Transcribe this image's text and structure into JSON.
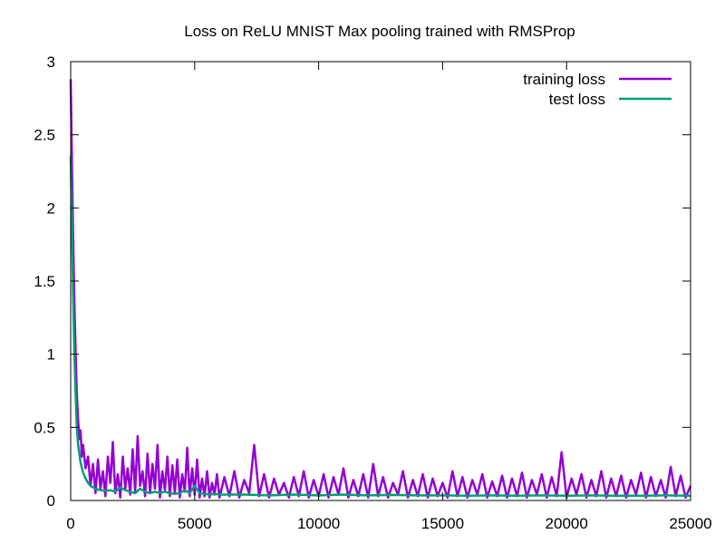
{
  "chart_data": {
    "type": "line",
    "title": "Loss on ReLU MNIST Max pooling trained with RMSProp",
    "xlabel": "",
    "ylabel": "",
    "xlim": [
      0,
      25000
    ],
    "ylim": [
      0,
      3
    ],
    "x_ticks": [
      "0",
      "5000",
      "10000",
      "15000",
      "20000",
      "25000"
    ],
    "y_ticks": [
      "0",
      "0.5",
      "1",
      "1.5",
      "2",
      "2.5",
      "3"
    ],
    "grid": false,
    "legend_position": "top-right",
    "series": [
      {
        "name": "training loss",
        "color": "#9400d3",
        "x": [
          0,
          50,
          100,
          150,
          200,
          250,
          300,
          350,
          400,
          450,
          500,
          600,
          700,
          800,
          900,
          1000,
          1100,
          1200,
          1300,
          1400,
          1500,
          1600,
          1700,
          1800,
          1900,
          2000,
          2100,
          2200,
          2300,
          2400,
          2500,
          2600,
          2700,
          2800,
          2900,
          3000,
          3100,
          3200,
          3300,
          3400,
          3500,
          3600,
          3700,
          3800,
          3900,
          4000,
          4100,
          4200,
          4300,
          4400,
          4500,
          4600,
          4700,
          4800,
          4900,
          5000,
          5100,
          5200,
          5300,
          5400,
          5500,
          5600,
          5700,
          5800,
          5900,
          6000,
          6200,
          6400,
          6600,
          6800,
          7000,
          7200,
          7400,
          7600,
          7800,
          8000,
          8200,
          8400,
          8600,
          8800,
          9000,
          9200,
          9400,
          9600,
          9800,
          10000,
          10200,
          10400,
          10600,
          10800,
          11000,
          11200,
          11400,
          11600,
          11800,
          12000,
          12200,
          12400,
          12600,
          12800,
          13000,
          13200,
          13400,
          13600,
          13800,
          14000,
          14200,
          14400,
          14600,
          14800,
          15000,
          15200,
          15400,
          15600,
          15800,
          16000,
          16200,
          16400,
          16600,
          16800,
          17000,
          17200,
          17400,
          17600,
          17800,
          18000,
          18200,
          18400,
          18600,
          18800,
          19000,
          19200,
          19400,
          19600,
          19800,
          20000,
          20200,
          20400,
          20600,
          20800,
          21000,
          21200,
          21400,
          21600,
          21800,
          22000,
          22200,
          22400,
          22600,
          22800,
          23000,
          23200,
          23400,
          23600,
          23800,
          24000,
          24200,
          24400,
          24600,
          24800,
          25000
        ],
        "values": [
          2.88,
          2.3,
          1.8,
          1.35,
          1.0,
          0.72,
          0.55,
          0.42,
          0.48,
          0.3,
          0.38,
          0.22,
          0.3,
          0.1,
          0.25,
          0.05,
          0.28,
          0.08,
          0.2,
          0.03,
          0.3,
          0.12,
          0.4,
          0.05,
          0.18,
          0.02,
          0.3,
          0.08,
          0.22,
          0.04,
          0.35,
          0.06,
          0.44,
          0.1,
          0.2,
          0.03,
          0.32,
          0.05,
          0.25,
          0.08,
          0.38,
          0.02,
          0.2,
          0.07,
          0.3,
          0.03,
          0.24,
          0.05,
          0.28,
          0.02,
          0.18,
          0.06,
          0.36,
          0.03,
          0.22,
          0.04,
          0.28,
          0.02,
          0.15,
          0.03,
          0.2,
          0.02,
          0.12,
          0.04,
          0.18,
          0.02,
          0.16,
          0.03,
          0.2,
          0.02,
          0.14,
          0.05,
          0.38,
          0.03,
          0.18,
          0.02,
          0.15,
          0.04,
          0.12,
          0.02,
          0.16,
          0.03,
          0.2,
          0.02,
          0.14,
          0.03,
          0.18,
          0.02,
          0.16,
          0.04,
          0.22,
          0.02,
          0.14,
          0.03,
          0.18,
          0.02,
          0.25,
          0.03,
          0.16,
          0.02,
          0.12,
          0.04,
          0.2,
          0.02,
          0.14,
          0.03,
          0.18,
          0.02,
          0.15,
          0.03,
          0.12,
          0.02,
          0.2,
          0.03,
          0.16,
          0.02,
          0.14,
          0.04,
          0.18,
          0.02,
          0.13,
          0.03,
          0.17,
          0.02,
          0.15,
          0.03,
          0.19,
          0.02,
          0.14,
          0.04,
          0.18,
          0.02,
          0.16,
          0.03,
          0.33,
          0.02,
          0.15,
          0.04,
          0.18,
          0.02,
          0.14,
          0.03,
          0.2,
          0.02,
          0.15,
          0.03,
          0.17,
          0.02,
          0.14,
          0.04,
          0.19,
          0.02,
          0.16,
          0.03,
          0.14,
          0.02,
          0.23,
          0.03,
          0.17,
          0.02,
          0.1
        ]
      },
      {
        "name": "test loss",
        "color": "#009e73",
        "x": [
          0,
          50,
          100,
          150,
          200,
          250,
          300,
          400,
          500,
          600,
          700,
          800,
          900,
          1000,
          1200,
          1400,
          1600,
          1800,
          2000,
          2200,
          2400,
          2600,
          2800,
          3000,
          3200,
          3400,
          3600,
          3800,
          4000,
          4200,
          4400,
          4600,
          4800,
          5000,
          5200,
          5400,
          5600,
          5800,
          6000,
          7000,
          8000,
          9000,
          10000,
          11000,
          12000,
          13000,
          14000,
          15000,
          16000,
          17000,
          18000,
          19000,
          20000,
          21000,
          22000,
          23000,
          24000,
          25000
        ],
        "values": [
          2.35,
          1.9,
          1.4,
          1.0,
          0.72,
          0.5,
          0.38,
          0.26,
          0.19,
          0.15,
          0.12,
          0.1,
          0.09,
          0.08,
          0.07,
          0.065,
          0.07,
          0.06,
          0.09,
          0.07,
          0.06,
          0.05,
          0.08,
          0.06,
          0.05,
          0.06,
          0.05,
          0.06,
          0.05,
          0.045,
          0.05,
          0.07,
          0.05,
          0.1,
          0.05,
          0.045,
          0.04,
          0.045,
          0.04,
          0.04,
          0.035,
          0.04,
          0.035,
          0.04,
          0.035,
          0.038,
          0.035,
          0.035,
          0.033,
          0.035,
          0.032,
          0.035,
          0.033,
          0.035,
          0.032,
          0.033,
          0.035,
          0.033
        ]
      }
    ]
  }
}
